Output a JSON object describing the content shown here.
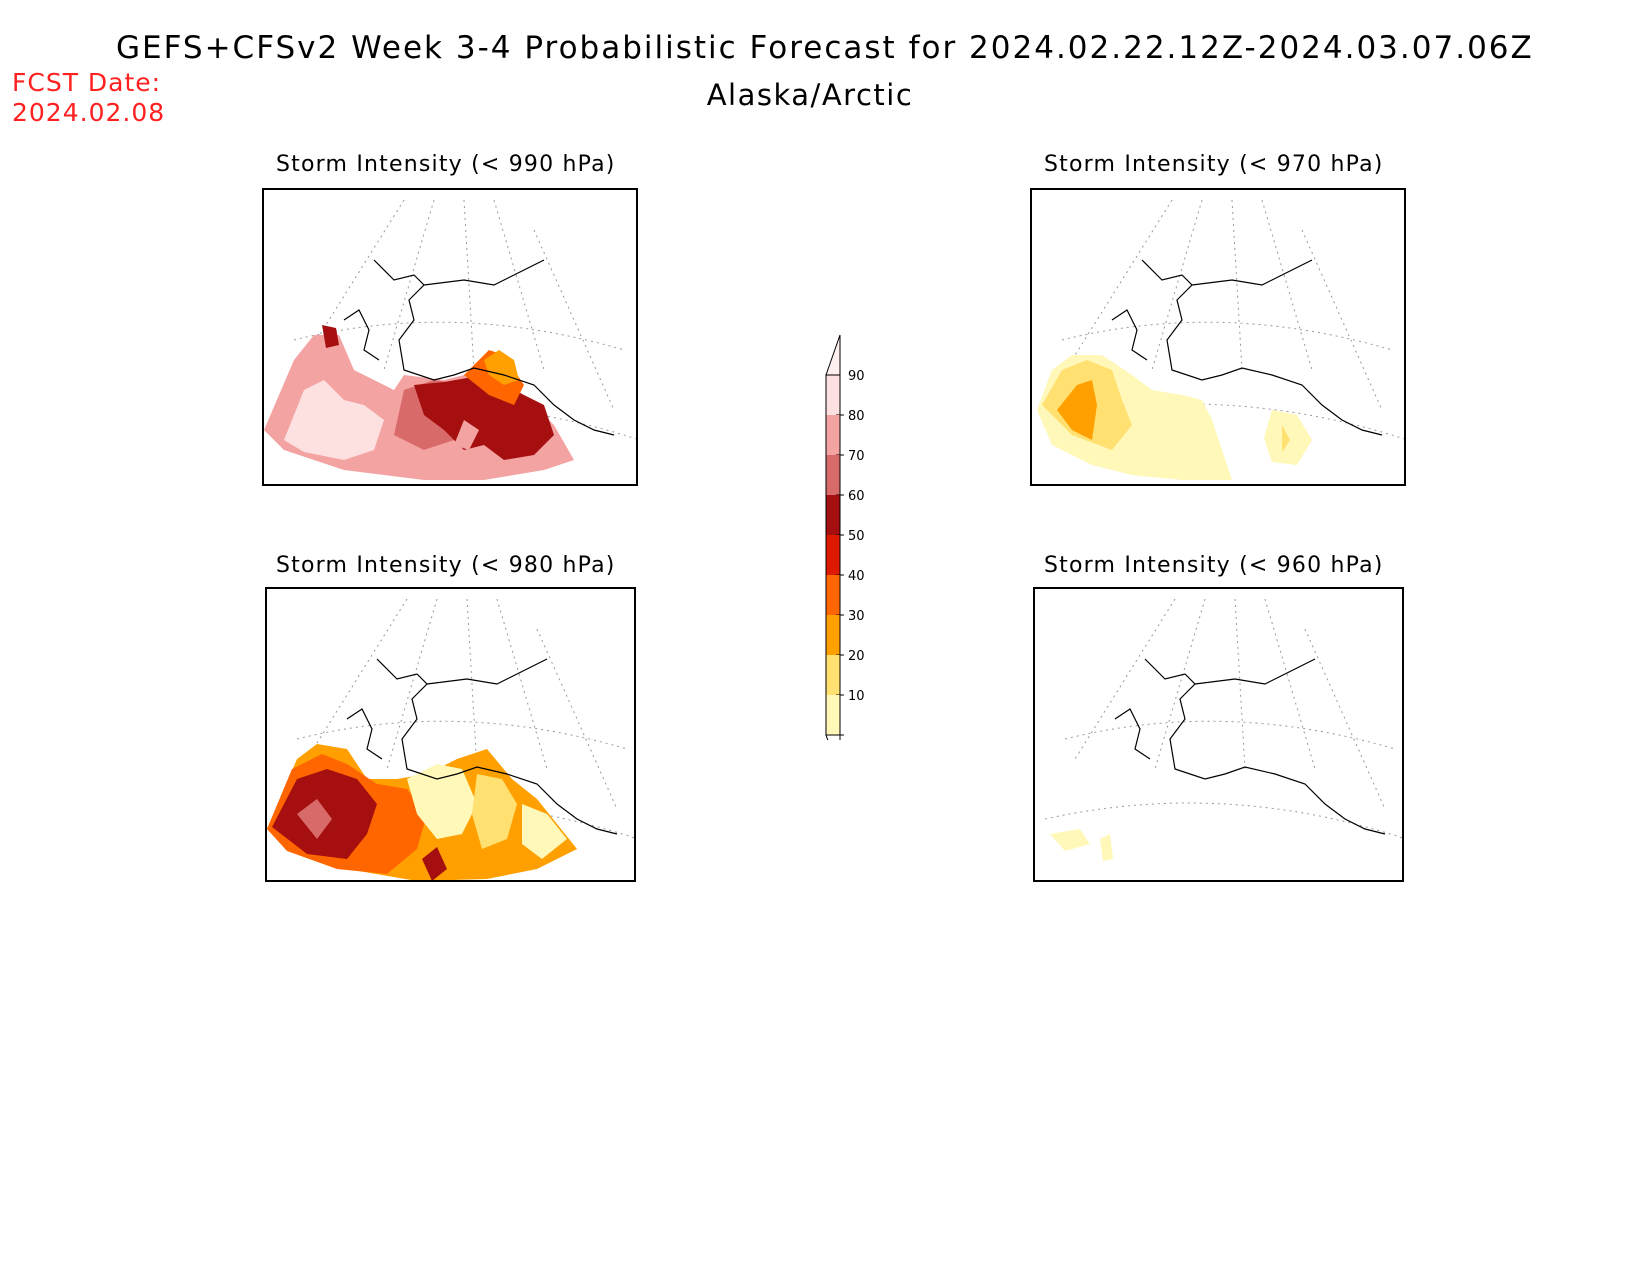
{
  "header": {
    "title": "GEFS+CFSv2 Week 3-4 Probabilistic Forecast for 2024.02.22.12Z-2024.03.07.06Z",
    "region": "Alaska/Arctic",
    "fcst_label": "FCST Date:",
    "fcst_date": "2024.02.08"
  },
  "panels": [
    {
      "title": "Storm Intensity (< 990 hPa)"
    },
    {
      "title": "Storm Intensity (< 970 hPa)"
    },
    {
      "title": "Storm Intensity (< 980 hPa)"
    },
    {
      "title": "Storm Intensity (< 960 hPa)"
    }
  ],
  "colorbar": {
    "levels": [
      "90",
      "80",
      "70",
      "60",
      "50",
      "40",
      "30",
      "20",
      "10"
    ],
    "colors": [
      "#fde0e0",
      "#f4a3a3",
      "#d96a6a",
      "#a50f0f",
      "#dd1a00",
      "#ff6600",
      "#ffa000",
      "#ffe070",
      "#fff8b8"
    ]
  }
}
